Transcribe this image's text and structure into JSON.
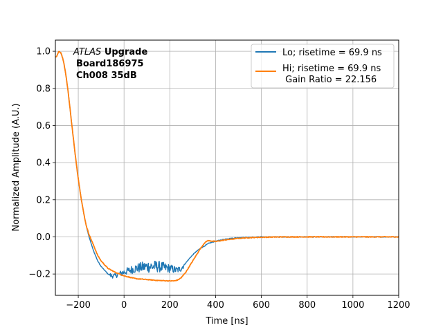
{
  "chart_data": {
    "type": "line",
    "xlabel": "Time [ns]",
    "ylabel": "Normalized Amplitude (A.U.)",
    "xlim": [
      -300,
      1200
    ],
    "ylim": [
      -0.315,
      1.06
    ],
    "xticks": [
      -200,
      0,
      200,
      400,
      600,
      800,
      1000,
      1200
    ],
    "xtick_labels": [
      "−200",
      "0",
      "200",
      "400",
      "600",
      "800",
      "1000",
      "1200"
    ],
    "yticks": [
      -0.2,
      0.0,
      0.2,
      0.4,
      0.6,
      0.8,
      1.0
    ],
    "ytick_labels": [
      "−0.2",
      "0.0",
      "0.2",
      "0.4",
      "0.6",
      "0.8",
      "1.0"
    ],
    "grid": true,
    "legend_position": "top-right",
    "annotation": {
      "italic": "ATLAS",
      "bold": "Upgrade",
      "line2": "Board186975",
      "line3": "Ch008 35dB"
    },
    "series": [
      {
        "name": "Lo; risetime = 69.9 ns",
        "color": "#1f77b4",
        "noisy_region": [
          -60,
          260
        ],
        "x": [
          -295,
          -285,
          -275,
          -265,
          -255,
          -245,
          -235,
          -225,
          -215,
          -205,
          -195,
          -185,
          -175,
          -165,
          -155,
          -145,
          -135,
          -125,
          -115,
          -100,
          -85,
          -70,
          -55,
          -40,
          -20,
          0,
          50,
          100,
          150,
          200,
          230,
          250,
          270,
          290,
          310,
          330,
          350,
          370,
          400,
          450,
          500,
          550,
          600,
          700,
          800,
          900,
          1000,
          1100,
          1200
        ],
        "y": [
          0.97,
          1.0,
          0.99,
          0.95,
          0.88,
          0.79,
          0.68,
          0.57,
          0.46,
          0.36,
          0.27,
          0.19,
          0.12,
          0.06,
          0.01,
          -0.03,
          -0.07,
          -0.1,
          -0.13,
          -0.16,
          -0.18,
          -0.2,
          -0.21,
          -0.21,
          -0.2,
          -0.19,
          -0.17,
          -0.16,
          -0.16,
          -0.17,
          -0.18,
          -0.17,
          -0.14,
          -0.11,
          -0.085,
          -0.065,
          -0.05,
          -0.035,
          -0.023,
          -0.01,
          -0.004,
          -0.002,
          0.0,
          0.0,
          0.0,
          0.0,
          0.0,
          0.0,
          0.0
        ]
      },
      {
        "name": "Hi; risetime = 69.9 ns\n Gain Ratio = 22.156",
        "color": "#ff7f0e",
        "noisy_region": null,
        "x": [
          -295,
          -285,
          -275,
          -265,
          -255,
          -245,
          -235,
          -225,
          -215,
          -205,
          -195,
          -185,
          -175,
          -165,
          -155,
          -145,
          -135,
          -125,
          -115,
          -100,
          -85,
          -70,
          -55,
          -40,
          -20,
          0,
          50,
          100,
          150,
          200,
          220,
          235,
          250,
          270,
          290,
          310,
          330,
          350,
          365,
          380,
          400,
          450,
          500,
          550,
          600,
          700,
          800,
          900,
          1000,
          1100,
          1200
        ],
        "y": [
          0.97,
          1.0,
          0.99,
          0.95,
          0.88,
          0.79,
          0.68,
          0.57,
          0.46,
          0.36,
          0.27,
          0.19,
          0.12,
          0.06,
          0.02,
          -0.01,
          -0.04,
          -0.07,
          -0.1,
          -0.13,
          -0.15,
          -0.17,
          -0.18,
          -0.19,
          -0.2,
          -0.21,
          -0.225,
          -0.23,
          -0.235,
          -0.237,
          -0.237,
          -0.232,
          -0.22,
          -0.19,
          -0.15,
          -0.11,
          -0.07,
          -0.035,
          -0.02,
          -0.022,
          -0.025,
          -0.015,
          -0.008,
          -0.004,
          -0.002,
          0.0,
          0.0,
          0.0,
          0.0,
          0.0,
          0.0
        ]
      }
    ]
  }
}
